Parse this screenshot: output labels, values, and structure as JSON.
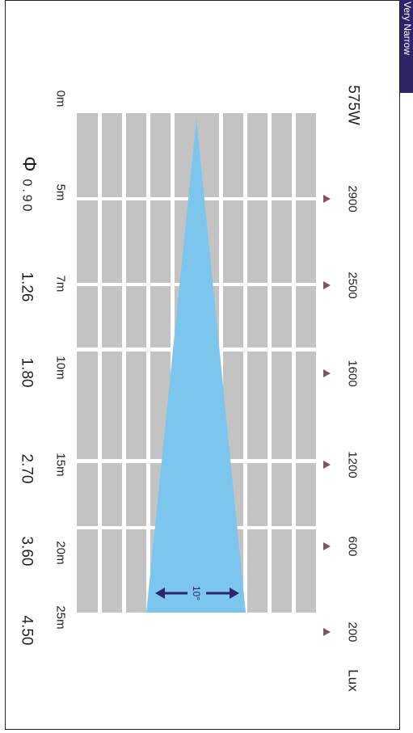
{
  "tab_label": "Very Narrow",
  "power": "575W",
  "lux_unit": "Lux",
  "lux_values": [
    "2900",
    "2500",
    "1600",
    "1200",
    "600",
    "200"
  ],
  "distances": [
    "0m",
    "5m",
    "7m",
    "10m",
    "15m",
    "20m",
    "25m"
  ],
  "diameter_symbol": "Φ",
  "diameters": [
    "0.90",
    "1.26",
    "1.80",
    "2.70",
    "3.60",
    "4.50"
  ],
  "beam_angle": "10°",
  "colors": {
    "beam": "#7cc6ee",
    "grid": "#c3c3c3",
    "marker": "#7d5468",
    "arrow": "#2e2569",
    "tab": "#2e2569"
  }
}
